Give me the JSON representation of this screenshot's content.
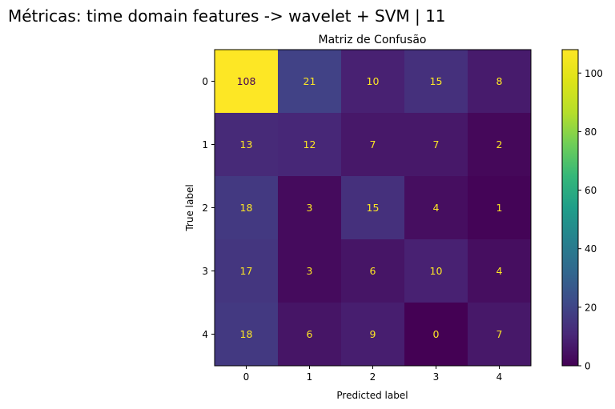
{
  "figure": {
    "suptitle": "Métricas: time domain features -> wavelet + SVM | 11"
  },
  "chart_data": {
    "type": "heatmap",
    "title": "Matriz de Confusão",
    "xlabel": "Predicted label",
    "ylabel": "True label",
    "x_categories": [
      "0",
      "1",
      "2",
      "3",
      "4"
    ],
    "y_categories": [
      "0",
      "1",
      "2",
      "3",
      "4"
    ],
    "matrix": [
      [
        108,
        21,
        10,
        15,
        8
      ],
      [
        13,
        12,
        7,
        7,
        2
      ],
      [
        18,
        3,
        15,
        4,
        1
      ],
      [
        17,
        3,
        6,
        10,
        4
      ],
      [
        18,
        6,
        9,
        0,
        7
      ]
    ],
    "colormap": "viridis",
    "vmin": 0,
    "vmax": 108,
    "colorbar_ticks": [
      "0",
      "20",
      "40",
      "60",
      "80",
      "100"
    ],
    "text_color_light": "#fde725",
    "text_color_dark": "#440154",
    "grid": false
  }
}
